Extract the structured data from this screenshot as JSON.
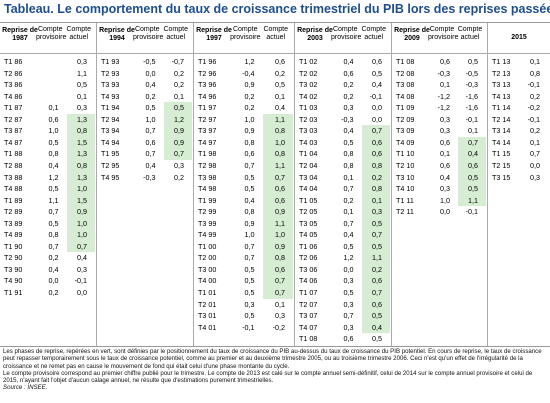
{
  "title": "Tableau. Le comportement du taux de croissance trimestriel du PIB lors des reprises passées",
  "table": {
    "groups": [
      {
        "header": [
          "Reprise de 1987",
          "Compte provisoire",
          "Compte actuel"
        ],
        "rows": [
          [
            "T1 86",
            null,
            "0,3"
          ],
          [
            "T2 86",
            null,
            "1,1"
          ],
          [
            "T3 86",
            null,
            "0,5"
          ],
          [
            "T4 86",
            null,
            "0,1"
          ],
          [
            "T1 87",
            "0,1",
            "0,3"
          ],
          [
            "T2 87",
            "0,6",
            "1,3"
          ],
          [
            "T3 87",
            "1,0",
            "0,8"
          ],
          [
            "T4 87",
            "0,5",
            "1,5"
          ],
          [
            "T1 88",
            "0,8",
            "1,3"
          ],
          [
            "T2 88",
            "0,4",
            "0,8"
          ],
          [
            "T3 88",
            "1,2",
            "1,3"
          ],
          [
            "T4 88",
            "0,5",
            "1,0"
          ],
          [
            "T1 89",
            "1,1",
            "1,5"
          ],
          [
            "T2 89",
            "0,7",
            "0,9"
          ],
          [
            "T3 89",
            "0,5",
            "1,0"
          ],
          [
            "T4 89",
            "0,8",
            "1,0"
          ],
          [
            "T1 90",
            "0,7",
            "0,7"
          ],
          [
            "T2 90",
            "0,2",
            "0,4"
          ],
          [
            "T3 90",
            "0,4",
            "0,3"
          ],
          [
            "T4 90",
            "0,0",
            "-0,1"
          ],
          [
            "T1 91",
            "0,2",
            "0,0"
          ]
        ]
      },
      {
        "header": [
          "Reprise de 1994",
          "Compte provisoire",
          "Compte actuel"
        ],
        "rows": [
          [
            "T1 93",
            "-0,5",
            "-0,7"
          ],
          [
            "T2 93",
            "0,0",
            "0,2"
          ],
          [
            "T3 93",
            "0,4",
            "0,2"
          ],
          [
            "T4 93",
            "0,2",
            "0,1"
          ],
          [
            "T1 94",
            "0,5",
            "0,5"
          ],
          [
            "T2 94",
            "1,0",
            "1,2"
          ],
          [
            "T3 94",
            "0,7",
            "0,9"
          ],
          [
            "T4 94",
            "0,6",
            "0,9"
          ],
          [
            "T1 95",
            "0,7",
            "0,7"
          ],
          [
            "T2 95",
            "0,4",
            "0,3"
          ],
          [
            "T4 95",
            "-0,3",
            "0,2"
          ]
        ]
      },
      {
        "header": [
          "Reprise de 1997",
          "Compte provisoire",
          "Compte actuel"
        ],
        "rows": [
          [
            "T1 96",
            "1,2",
            "0,6"
          ],
          [
            "T2 96",
            "-0,4",
            "0,2"
          ],
          [
            "T3 96",
            "0,9",
            "0,5"
          ],
          [
            "T4 96",
            "0,2",
            "0,1"
          ],
          [
            "T1 97",
            "0,2",
            "0,4"
          ],
          [
            "T2 97",
            "1,0",
            "1,1"
          ],
          [
            "T3 97",
            "0,9",
            "0,8"
          ],
          [
            "T4 97",
            "0,8",
            "1,0"
          ],
          [
            "T1 98",
            "0,6",
            "0,8"
          ],
          [
            "T2 98",
            "0,7",
            "1,1"
          ],
          [
            "T3 98",
            "0,5",
            "0,7"
          ],
          [
            "T4 98",
            "0,5",
            "0,6"
          ],
          [
            "T1 99",
            "0,4",
            "0,6"
          ],
          [
            "T2 99",
            "0,8",
            "0,9"
          ],
          [
            "T3 99",
            "0,9",
            "1,1"
          ],
          [
            "T4 99",
            "1,0",
            "1,0"
          ],
          [
            "T1 00",
            "0,7",
            "0,9"
          ],
          [
            "T2 00",
            "0,7",
            "0,8"
          ],
          [
            "T3 00",
            "0,5",
            "0,6"
          ],
          [
            "T4 00",
            "0,5",
            "0,7"
          ],
          [
            "T1 01",
            "0,5",
            "0,7"
          ],
          [
            "T2 01",
            "0,3",
            "0,1"
          ],
          [
            "T3 01",
            "0,5",
            "0,3"
          ],
          [
            "T4 01",
            "-0,1",
            "-0,2"
          ]
        ]
      },
      {
        "header": [
          "Reprise de 2003",
          "Compte provisoire",
          "Compte actuel"
        ],
        "rows": [
          [
            "T1 02",
            "0,4",
            "0,6"
          ],
          [
            "T2 02",
            "0,6",
            "0,5"
          ],
          [
            "T3 02",
            "0,2",
            "0,4"
          ],
          [
            "T4 02",
            "0,2",
            "-0,1"
          ],
          [
            "T1 03",
            "0,3",
            "0,0"
          ],
          [
            "T2 03",
            "-0,3",
            "0,0"
          ],
          [
            "T3 03",
            "0,4",
            "0,7"
          ],
          [
            "T4 03",
            "0,5",
            "0,6"
          ],
          [
            "T1 04",
            "0,8",
            "0,6"
          ],
          [
            "T2 04",
            "0,8",
            "0,8"
          ],
          [
            "T3 04",
            "0,1",
            "0,2"
          ],
          [
            "T4 04",
            "0,7",
            "0,8"
          ],
          [
            "T1 05",
            "0,2",
            "0,1"
          ],
          [
            "T2 05",
            "0,1",
            "0,3"
          ],
          [
            "T3 05",
            "0,7",
            "0,5"
          ],
          [
            "T4 05",
            "0,4",
            "0,7"
          ],
          [
            "T1 06",
            "0,5",
            "0,5"
          ],
          [
            "T2 06",
            "1,2",
            "1,1"
          ],
          [
            "T3 06",
            "0,0",
            "0,2"
          ],
          [
            "T4 06",
            "0,3",
            "0,6"
          ],
          [
            "T1 07",
            "0,5",
            "0,7"
          ],
          [
            "T2 07",
            "0,3",
            "0,6"
          ],
          [
            "T3 07",
            "0,7",
            "0,5"
          ],
          [
            "T4 07",
            "0,3",
            "0,4"
          ],
          [
            "T1 08",
            "0,6",
            "0,5"
          ]
        ]
      },
      {
        "header": [
          "Reprise de 2009",
          "Compte provisoire",
          "Compte actuel"
        ],
        "rows": [
          [
            "T1 08",
            "0,6",
            "0,5"
          ],
          [
            "T2 08",
            "-0,3",
            "-0,5"
          ],
          [
            "T3 08",
            "0,1",
            "-0,3"
          ],
          [
            "T4 08",
            "-1,2",
            "-1,6"
          ],
          [
            "T1 09",
            "-1,2",
            "-1,6"
          ],
          [
            "T2 09",
            "0,3",
            "-0,1"
          ],
          [
            "T3 09",
            "0,3",
            "0,1"
          ],
          [
            "T4 09",
            "0,6",
            "0,7"
          ],
          [
            "T1 10",
            "0,1",
            "0,4"
          ],
          [
            "T2 10",
            "0,6",
            "0,6"
          ],
          [
            "T3 10",
            "0,4",
            "0,5"
          ],
          [
            "T4 10",
            "0,3",
            "0,5"
          ],
          [
            "T1 11",
            "1,0",
            "1,1"
          ],
          [
            "T2 11",
            "0,0",
            "-0,1"
          ]
        ]
      },
      {
        "header": [
          "2015"
        ],
        "rows": [
          [
            "T1 13",
            "0,1"
          ],
          [
            "T2 13",
            "0,8"
          ],
          [
            "T3 13",
            "-0,1"
          ],
          [
            "T4 13",
            "0,2"
          ],
          [
            "T1 14",
            "-0,2"
          ],
          [
            "T2 14",
            "-0,1"
          ],
          [
            "T3 14",
            "0,2"
          ],
          [
            "T4 14",
            "0,1"
          ],
          [
            "T1 15",
            "0,7"
          ],
          [
            "T2 15",
            "0,0"
          ],
          [
            "T3 15",
            "0,3"
          ]
        ]
      }
    ]
  },
  "notes": [
    "Les phases de reprise, repérées en vert, sont définies par le positionnement du taux de croissance du PIB au-dessus du taux de croissance du PIB potentiel. En cours de reprise, le taux de croissance peut repasser temporairement sous le taux de croissance potentiel, comme au premier et au deuxième trimestre 2005, ou au troisième trimestre 2006. Ceci n'est qu'un effet de l'irrégularité de la croissance et ne remet pas en cause le mouvement de fond qui était celui d'une phase montante du cycle.",
    "Le compte provisoire correspond au premier chiffre publié pour le trimestre. Le compte de 2013 est calé sur le compte annuel semi-définitif, celui de 2014 sur le compte annuel provisoire et celui de 2015, n'ayant fait l'objet d'aucun calage annuel, ne résulte que d'estimations purement trimestrielles.",
    "Source : INSEE."
  ]
}
